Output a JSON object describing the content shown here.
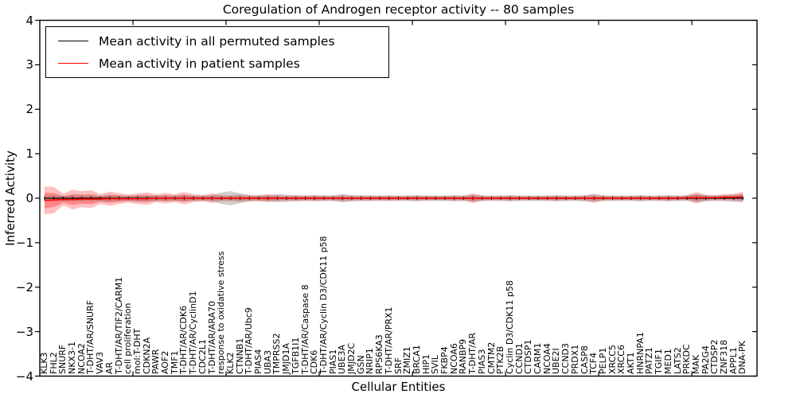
{
  "window": {
    "kind": "matplotlib-figure"
  },
  "colors": {
    "background": "#ffffff",
    "spine": "#000000",
    "permuted_line": "#000000",
    "patient_line": "#ff0000",
    "patient_band_outer": "rgba(255,0,0,0.25)",
    "patient_band_inner": "rgba(255,0,0,0.30)",
    "permuted_band": "rgba(120,120,120,0.35)"
  },
  "chart_data": {
    "type": "line",
    "title": "Coregulation of Androgen receptor activity -- 80 samples",
    "xlabel": "Cellular Entities",
    "ylabel": "Inferred Activity",
    "ylim": [
      -4,
      4
    ],
    "yticklabels": [
      "4",
      "3",
      "2",
      "1",
      "0",
      "−1",
      "−2",
      "−3",
      "−4"
    ],
    "grid": false,
    "legend_position": "upper left",
    "categories": [
      "KLK3",
      "FHL2",
      "SNURF",
      "NKX3-1",
      "NCOA2",
      "T-DHT/AR/SNURF",
      "VAV3",
      "AR",
      "T-DHT/AR/TIF2/CARM1",
      "cell proliferation",
      "mol:T-DHT",
      "CDKN2A",
      "PAWR",
      "AOF2",
      "TMF1",
      "T-DHT/AR/CDK6",
      "T-DHT/AR/CyclinD1",
      "CDC2L1",
      "T-DHT/AR/ARA70",
      "response to oxidative stress",
      "KLK2",
      "CTNNB1",
      "T-DHT/AR/Ubc9",
      "PIAS4",
      "UBA3",
      "TMPRSS2",
      "JMJD1A",
      "TGFB1I1",
      "T-DHT/AR/Caspase 8",
      "CDK6",
      "T-DHT/AR/Cyclin D3/CDK11 p58",
      "PIAS1",
      "UBE3A",
      "JMJD2C",
      "GSN",
      "NRIP1",
      "RPS6KA3",
      "T-DHT/AR/PRX1",
      "SRF",
      "ZMIZ1",
      "BRCA1",
      "HIP1",
      "SVIL",
      "FKBP4",
      "NCOA6",
      "RANBP9",
      "T-DHT/AR",
      "PIAS3",
      "CMTM2",
      "PTK2B",
      "Cyclin D3/CDK11 p58",
      "CCND1",
      "CTDSP1",
      "CARM1",
      "NCOA4",
      "UBE2I",
      "CCND3",
      "PRDX1",
      "CASP8",
      "TCF4",
      "PELP1",
      "XRCC5",
      "XRCC6",
      "AKT1",
      "HNRNPA1",
      "PATZ1",
      "TGIF1",
      "MED1",
      "LATS2",
      "PRKDC",
      "MAK",
      "PA2G4",
      "CTDSP2",
      "ZNF318",
      "APPL1",
      "DNA-PK"
    ],
    "series": [
      {
        "name": "Mean activity in all permuted samples",
        "color": "#000000",
        "values": [
          0,
          0,
          0,
          0,
          0,
          0,
          0,
          0,
          0,
          0,
          0,
          0,
          0,
          0,
          0,
          0,
          0,
          0,
          0,
          0,
          0,
          0,
          0,
          0,
          0,
          0,
          0,
          0,
          0,
          0,
          0,
          0,
          0,
          0,
          0,
          0,
          0,
          0,
          0,
          0,
          0,
          0,
          0,
          0,
          0,
          0,
          0,
          0,
          0,
          0,
          0,
          0,
          0,
          0,
          0,
          0,
          0,
          0,
          0,
          0,
          0,
          0,
          0,
          0,
          0,
          0,
          0,
          0,
          0,
          0,
          0,
          0,
          0,
          0,
          0,
          0
        ],
        "band_halfwidth": [
          0.06,
          0.06,
          0.06,
          0.06,
          0.07,
          0.06,
          0.06,
          0.07,
          0.06,
          0.06,
          0.07,
          0.06,
          0.07,
          0.06,
          0.06,
          0.07,
          0.06,
          0.06,
          0.07,
          0.13,
          0.16,
          0.11,
          0.07,
          0.06,
          0.07,
          0.09,
          0.08,
          0.06,
          0.06,
          0.06,
          0.06,
          0.06,
          0.09,
          0.07,
          0.06,
          0.06,
          0.06,
          0.06,
          0.06,
          0.06,
          0.07,
          0.06,
          0.06,
          0.06,
          0.07,
          0.06,
          0.08,
          0.06,
          0.06,
          0.06,
          0.07,
          0.06,
          0.06,
          0.06,
          0.06,
          0.07,
          0.06,
          0.06,
          0.07,
          0.08,
          0.06,
          0.06,
          0.06,
          0.06,
          0.07,
          0.06,
          0.06,
          0.07,
          0.06,
          0.06,
          0.09,
          0.07,
          0.06,
          0.07,
          0.08,
          0.09
        ]
      },
      {
        "name": "Mean activity in patient samples",
        "color": "#ff0000",
        "values": [
          -0.05,
          -0.04,
          -0.03,
          -0.03,
          -0.02,
          -0.02,
          -0.02,
          -0.01,
          -0.01,
          -0.01,
          -0.01,
          -0.01,
          0,
          0,
          0,
          0,
          0,
          0,
          0,
          0,
          0,
          0,
          0,
          0,
          0,
          0,
          0,
          0,
          0,
          0,
          0,
          0,
          0,
          0,
          0,
          0,
          0,
          0,
          0,
          0,
          0,
          0,
          0,
          0,
          0,
          0,
          0,
          0,
          0,
          0,
          0,
          0,
          0,
          0,
          0,
          0,
          0,
          0,
          0,
          0,
          0,
          0,
          0,
          0,
          0,
          0,
          0,
          0,
          0,
          0.01,
          0.01,
          0.01,
          0.01,
          0.02,
          0.02,
          0.03
        ],
        "band_outer_halfwidth": [
          0.31,
          0.3,
          0.13,
          0.22,
          0.18,
          0.2,
          0.11,
          0.16,
          0.12,
          0.09,
          0.12,
          0.14,
          0.09,
          0.12,
          0.09,
          0.14,
          0.09,
          0.07,
          0.11,
          0.07,
          0.07,
          0.09,
          0.07,
          0.07,
          0.09,
          0.07,
          0.06,
          0.07,
          0.06,
          0.07,
          0.06,
          0.06,
          0.08,
          0.06,
          0.06,
          0.06,
          0.05,
          0.06,
          0.05,
          0.05,
          0.06,
          0.05,
          0.05,
          0.05,
          0.06,
          0.05,
          0.11,
          0.06,
          0.05,
          0.05,
          0.06,
          0.05,
          0.05,
          0.05,
          0.05,
          0.06,
          0.05,
          0.05,
          0.06,
          0.1,
          0.06,
          0.05,
          0.05,
          0.05,
          0.06,
          0.05,
          0.05,
          0.06,
          0.05,
          0.06,
          0.13,
          0.07,
          0.06,
          0.07,
          0.08,
          0.11
        ],
        "band_inner_halfwidth": [
          0.17,
          0.16,
          0.07,
          0.12,
          0.1,
          0.11,
          0.06,
          0.09,
          0.07,
          0.05,
          0.07,
          0.08,
          0.05,
          0.07,
          0.05,
          0.08,
          0.05,
          0.04,
          0.06,
          0.04,
          0.04,
          0.05,
          0.04,
          0.04,
          0.05,
          0.04,
          0.03,
          0.04,
          0.03,
          0.04,
          0.03,
          0.03,
          0.04,
          0.03,
          0.03,
          0.03,
          0.03,
          0.03,
          0.03,
          0.03,
          0.03,
          0.03,
          0.03,
          0.03,
          0.03,
          0.03,
          0.06,
          0.03,
          0.03,
          0.03,
          0.03,
          0.03,
          0.03,
          0.03,
          0.03,
          0.03,
          0.03,
          0.03,
          0.03,
          0.05,
          0.03,
          0.03,
          0.03,
          0.03,
          0.03,
          0.03,
          0.03,
          0.03,
          0.03,
          0.03,
          0.07,
          0.04,
          0.03,
          0.04,
          0.04,
          0.06
        ]
      }
    ]
  }
}
